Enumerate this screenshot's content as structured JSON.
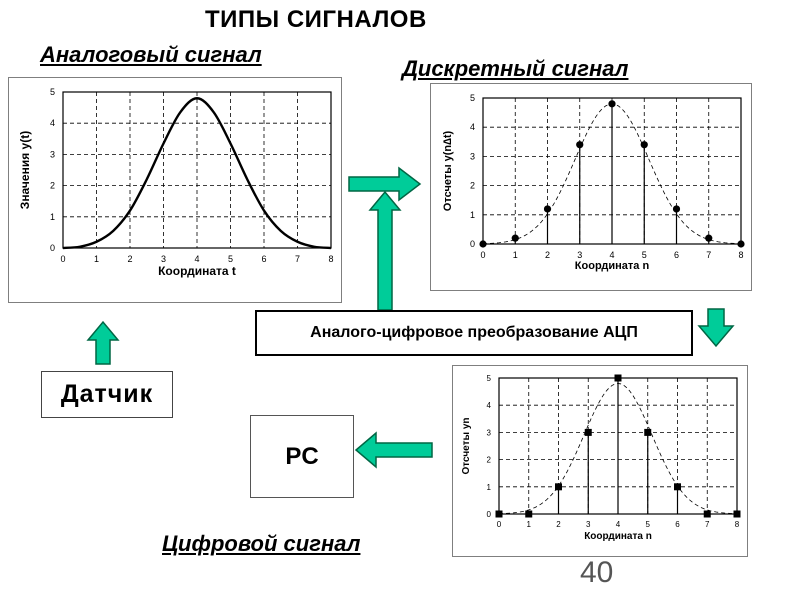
{
  "title": "ТИПЫ СИГНАЛОВ",
  "headings": {
    "analog": "Аналоговый сигнал",
    "discrete": "Дискретный сигнал",
    "digital": "Цифровой сигнал"
  },
  "adc_label": "Аналого-цифровое преобразование АЦП",
  "sensor_label": "Датчик",
  "pc_label": "PC",
  "page_number": "40",
  "colors": {
    "arrow_fill": "#00cc99",
    "arrow_stroke": "#006644"
  },
  "chart_data": [
    {
      "type": "line",
      "xlabel": "Координата  t",
      "ylabel": "Значения  y(t)",
      "xlim": [
        0,
        8
      ],
      "ylim": [
        0,
        5
      ],
      "x_ticks": [
        0,
        1,
        2,
        3,
        4,
        5,
        6,
        7,
        8
      ],
      "y_ticks": [
        0,
        1,
        2,
        3,
        4,
        5
      ],
      "grid": true,
      "series": [
        {
          "x": [
            0,
            0.5,
            1,
            1.5,
            2,
            2.5,
            3,
            3.5,
            4,
            4.5,
            5,
            5.5,
            6,
            6.5,
            7,
            7.5,
            8
          ],
          "values": [
            0,
            0.04,
            0.2,
            0.55,
            1.2,
            2.2,
            3.35,
            4.35,
            4.8,
            4.35,
            3.35,
            2.2,
            1.2,
            0.55,
            0.2,
            0.04,
            0
          ]
        }
      ]
    },
    {
      "type": "scatter",
      "xlabel": "Координата  n",
      "ylabel": "Отсчеты  y(n∆t)",
      "xlim": [
        0,
        8
      ],
      "ylim": [
        0,
        5
      ],
      "x_ticks": [
        0,
        1,
        2,
        3,
        4,
        5,
        6,
        7,
        8
      ],
      "y_ticks": [
        0,
        1,
        2,
        3,
        4,
        5
      ],
      "grid": true,
      "marker": "circle",
      "stems": true,
      "series": [
        {
          "x": [
            0,
            1,
            2,
            3,
            4,
            5,
            6,
            7,
            8
          ],
          "values": [
            0,
            0.2,
            1.2,
            3.4,
            4.8,
            3.4,
            1.2,
            0.2,
            0
          ]
        }
      ]
    },
    {
      "type": "scatter",
      "xlabel": "Координата  n",
      "ylabel": "Отсчеты  yn",
      "xlim": [
        0,
        8
      ],
      "ylim": [
        0,
        5
      ],
      "x_ticks": [
        0,
        1,
        2,
        3,
        4,
        5,
        6,
        7,
        8
      ],
      "y_ticks": [
        0,
        1,
        2,
        3,
        4,
        5
      ],
      "grid": true,
      "marker": "square",
      "stems": true,
      "series": [
        {
          "x": [
            0,
            1,
            2,
            3,
            4,
            5,
            6,
            7,
            8
          ],
          "values": [
            0,
            0,
            1,
            3,
            5,
            3,
            1,
            0,
            0
          ]
        }
      ]
    }
  ]
}
